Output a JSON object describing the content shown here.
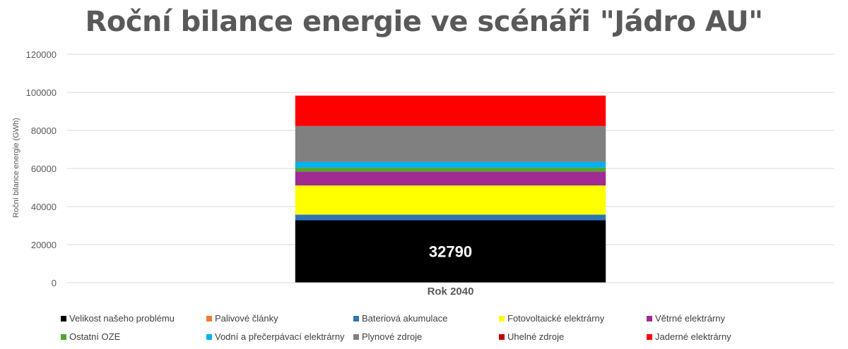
{
  "chart_data": {
    "type": "bar",
    "stacked": true,
    "title": "Roční bilance energie ve scénáři \"Jádro AU\"",
    "ylabel": "Roční bilance energie (GWh)",
    "xlabel": "",
    "ylim": [
      0,
      120000
    ],
    "yticks": [
      0,
      20000,
      40000,
      60000,
      80000,
      100000,
      120000
    ],
    "grid": true,
    "legend_position": "bottom",
    "categories": [
      "Rok 2040"
    ],
    "series": [
      {
        "name": "Velikost našeho problému",
        "color": "#000000",
        "values": [
          32790
        ],
        "label": "32790"
      },
      {
        "name": "Palivové články",
        "color": "#ED7D31",
        "values": [
          0
        ]
      },
      {
        "name": "Bateriová akumulace",
        "color": "#2E75B6",
        "values": [
          3000
        ]
      },
      {
        "name": "Fotovoltaické elektrárny",
        "color": "#FFFF00",
        "values": [
          15300
        ]
      },
      {
        "name": "Větrné elektrárny",
        "color": "#A02B93",
        "values": [
          7300
        ]
      },
      {
        "name": "Ostatní OZE",
        "color": "#4EA72E",
        "values": [
          2100
        ]
      },
      {
        "name": "Vodní a přečerpávací elektrárny",
        "color": "#00B0F0",
        "values": [
          3000
        ]
      },
      {
        "name": "Plynové zdroje",
        "color": "#808080",
        "values": [
          18800
        ]
      },
      {
        "name": "Uhelné zdroje",
        "color": "#C00000",
        "values": [
          0
        ]
      },
      {
        "name": "Jaderné elektrárny",
        "color": "#FF0000",
        "values": [
          16000
        ]
      }
    ]
  }
}
